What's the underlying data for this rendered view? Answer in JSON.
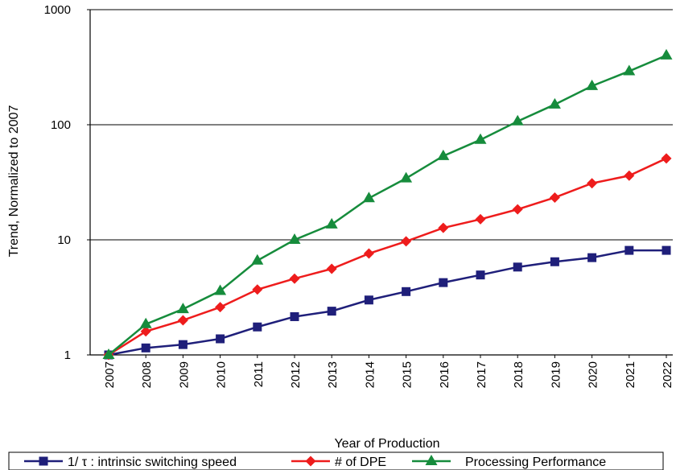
{
  "chart_data": {
    "type": "line",
    "title": "",
    "xlabel": "Year of Production",
    "ylabel": "Trend, Normalized to 2007",
    "yscale": "log",
    "ylim": [
      1,
      1000
    ],
    "yticks": [
      {
        "value": 1,
        "label": "1"
      },
      {
        "value": 10,
        "label": "10"
      },
      {
        "value": 100,
        "label": "100"
      },
      {
        "value": 1000,
        "label": "1000"
      }
    ],
    "grid": "horizontal",
    "legend_position": "bottom",
    "categories": [
      "2007",
      "2008",
      "2009",
      "2010",
      "2011",
      "2012",
      "2013",
      "2014",
      "2015",
      "2016",
      "2017",
      "2018",
      "2019",
      "2020",
      "2021",
      "2022"
    ],
    "series": [
      {
        "name": "1/ τ : intrinsic switching speed",
        "color": "#1f1f7a",
        "marker": "square",
        "values": [
          1.0,
          1.15,
          1.23,
          1.38,
          1.75,
          2.15,
          2.4,
          3.0,
          3.55,
          4.25,
          4.95,
          5.8,
          6.45,
          7.0,
          8.1,
          8.1
        ]
      },
      {
        "name": "# of DPE",
        "color": "#ee1c1c",
        "marker": "diamond",
        "values": [
          1.0,
          1.6,
          2.0,
          2.6,
          3.7,
          4.6,
          5.6,
          7.6,
          9.7,
          12.7,
          15.1,
          18.4,
          23.3,
          31.0,
          36.1,
          51.0
        ]
      },
      {
        "name": "Processing Performance",
        "color": "#168c3c",
        "marker": "triangle",
        "values": [
          1.0,
          1.85,
          2.5,
          3.6,
          6.6,
          10.0,
          13.6,
          23.0,
          34.2,
          53.5,
          74.0,
          107.0,
          150.0,
          217.0,
          292.0,
          400.0
        ]
      }
    ]
  }
}
